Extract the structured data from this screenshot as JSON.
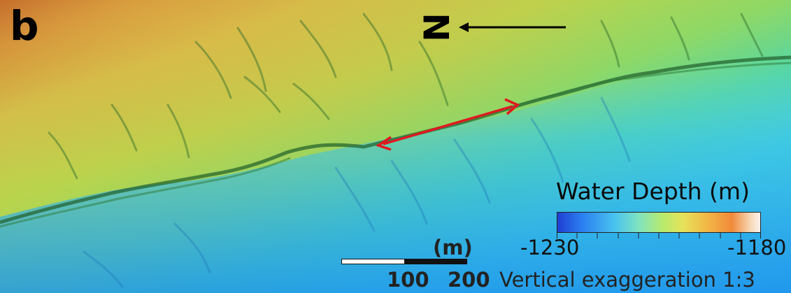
{
  "panel_label": "b",
  "north_label": "N",
  "legend": {
    "title": "Water Depth (m)",
    "min_label": "-1230",
    "max_label": "-1180",
    "min_value": -1230,
    "max_value": -1180,
    "colormap": [
      "#1f3fd1",
      "#2a7ef0",
      "#48c2f0",
      "#7fe3c0",
      "#b8ea6c",
      "#e6e25a",
      "#f2b646",
      "#f08a3a",
      "#f7d6b4",
      "#fbf2ec"
    ]
  },
  "scale_bar": {
    "unit": "(m)",
    "mid_label": "100",
    "end_label": "200"
  },
  "vertical_exaggeration": "Vertical exaggeration 1:3",
  "colors": {
    "annotation_arrow": "#e0191f",
    "north_arrow": "#000000"
  }
}
